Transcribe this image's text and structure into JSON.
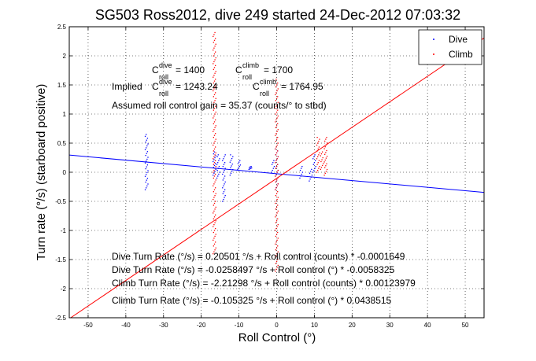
{
  "chart_data": {
    "type": "scatter",
    "title": "SG503 Ross2012, dive 249 started 24-Dec-2012 07:03:32",
    "xlabel": "Roll Control (°)",
    "ylabel": "Turn rate (°/s) (starboard positive)",
    "xlim": [
      -55,
      55
    ],
    "ylim": [
      -2.5,
      2.5
    ],
    "xticks": [
      -50,
      -40,
      -30,
      -20,
      -10,
      0,
      10,
      20,
      30,
      40,
      50
    ],
    "yticks": [
      -2.5,
      -2,
      -1.5,
      -1,
      -0.5,
      0,
      0.5,
      1,
      1.5,
      2,
      2.5
    ],
    "grid": true,
    "legend_position": "top-right",
    "legend": [
      "Dive",
      "Climb"
    ],
    "colors": {
      "dive": "#0000ff",
      "climb": "#ff0000"
    },
    "annotations": {
      "c_line_1": {
        "c1": "C",
        "c1_sup": "dive",
        "c1_sub": "roll",
        "c1_val": " = 1400",
        "c2": "C",
        "c2_sup": "climb",
        "c2_sub": "roll",
        "c2_val": " = 1700"
      },
      "c_line_2": {
        "prefix": "Implied ",
        "c1": "C",
        "c1_sup": "dive",
        "c1_sub": "roll",
        "c1_val": " = 1243.24",
        "c2": "C",
        "c2_sup": "climb",
        "c2_sub": "roll",
        "c2_val": " = 1764.95"
      },
      "gain": "Assumed roll control gain = 35.37 (counts/° to stbd)",
      "fits": [
        "Dive Turn Rate (°/s) = 0.20501 °/s + Roll control (counts) * -0.0001649",
        "Dive Turn Rate (°/s) = -0.0258497 °/s + Roll control (°) * -0.0058325",
        "Climb Turn Rate (°/s) = -2.21298 °/s + Roll control (counts) * 0.00123979",
        "Climb Turn Rate (°/s) = -0.105325 °/s + Roll control (°) * 0.0438515"
      ]
    },
    "fit_lines": [
      {
        "series": "Dive",
        "intercept": -0.0258497,
        "slope": -0.0058325
      },
      {
        "series": "Climb",
        "intercept": -0.105325,
        "slope": 0.0438515
      }
    ],
    "series": [
      {
        "name": "Dive",
        "clusters": [
          {
            "x": -34.5,
            "y_min": -0.3,
            "y_max": 0.65
          },
          {
            "x": -16.5,
            "y_min": -0.05,
            "y_max": 0.35
          },
          {
            "x": -15.5,
            "y_min": -0.1,
            "y_max": 0.3
          },
          {
            "x": -14.0,
            "y_min": -0.5,
            "y_max": 0.3
          },
          {
            "x": -12.0,
            "y_min": -0.05,
            "y_max": 0.3
          },
          {
            "x": -10.0,
            "y_min": 0.05,
            "y_max": 0.2
          },
          {
            "x": -7.0,
            "y_min": 0.05,
            "y_max": 0.1
          },
          {
            "x": -1.0,
            "y_min": 0.0,
            "y_max": 0.2
          },
          {
            "x": 0.0,
            "y_min": -0.3,
            "y_max": 0.4
          },
          {
            "x": 6.5,
            "y_min": -0.1,
            "y_max": 0.1
          },
          {
            "x": 9.0,
            "y_min": -0.15,
            "y_max": 0.05
          },
          {
            "x": 10.0,
            "y_min": 0.0,
            "y_max": 0.3
          }
        ]
      },
      {
        "name": "Climb",
        "clusters": [
          {
            "x": -16.5,
            "y_min": -1.4,
            "y_max": 2.4
          },
          {
            "x": 0.0,
            "y_min": -1.7,
            "y_max": 1.6
          },
          {
            "x": 11.0,
            "y_min": 0.0,
            "y_max": 0.6
          },
          {
            "x": 12.0,
            "y_min": 0.05,
            "y_max": 0.35
          },
          {
            "x": 13.0,
            "y_min": -0.05,
            "y_max": 0.6
          }
        ]
      }
    ]
  }
}
